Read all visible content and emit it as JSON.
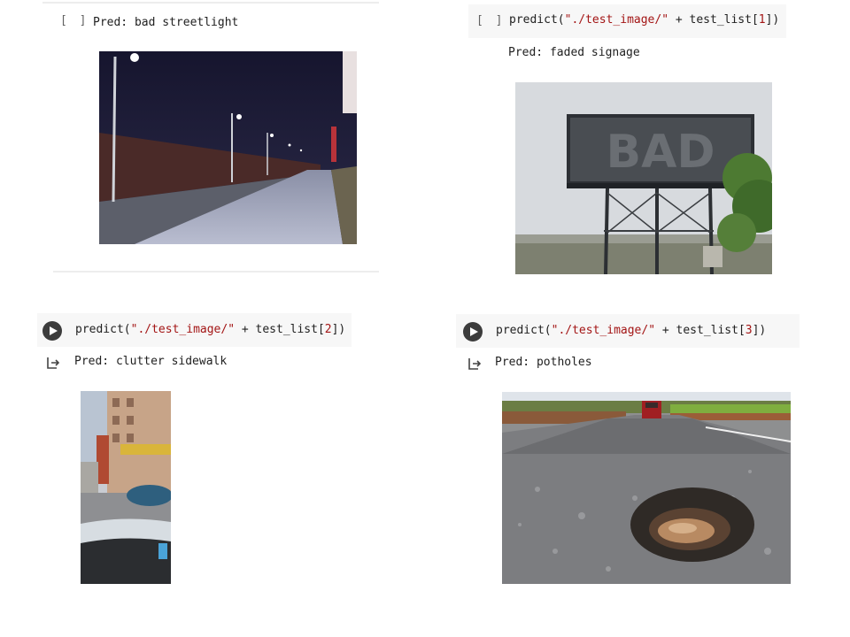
{
  "cells": [
    {
      "bracket": "[ ]",
      "output": "Pred: bad streetlight",
      "image": "night street with lamps"
    },
    {
      "bracket": "[ ]",
      "code_prefix": "predict(",
      "code_string": "\"./test_image/\"",
      "code_mid": " + test_list[",
      "code_index": "1",
      "code_suffix": "])",
      "output": "Pred: faded signage",
      "image": "faded billboard"
    },
    {
      "code_prefix": "predict(",
      "code_string": "\"./test_image/\"",
      "code_mid": " + test_list[",
      "code_index": "2",
      "code_suffix": "])",
      "output": "Pred: clutter sidewalk",
      "image": "cluttered sidewalk street"
    },
    {
      "code_prefix": "predict(",
      "code_string": "\"./test_image/\"",
      "code_mid": " + test_list[",
      "code_index": "3",
      "code_suffix": "])",
      "output": "Pred: potholes",
      "image": "road pothole"
    }
  ],
  "icons": {
    "run": "play-icon",
    "output": "output-arrow-icon"
  }
}
